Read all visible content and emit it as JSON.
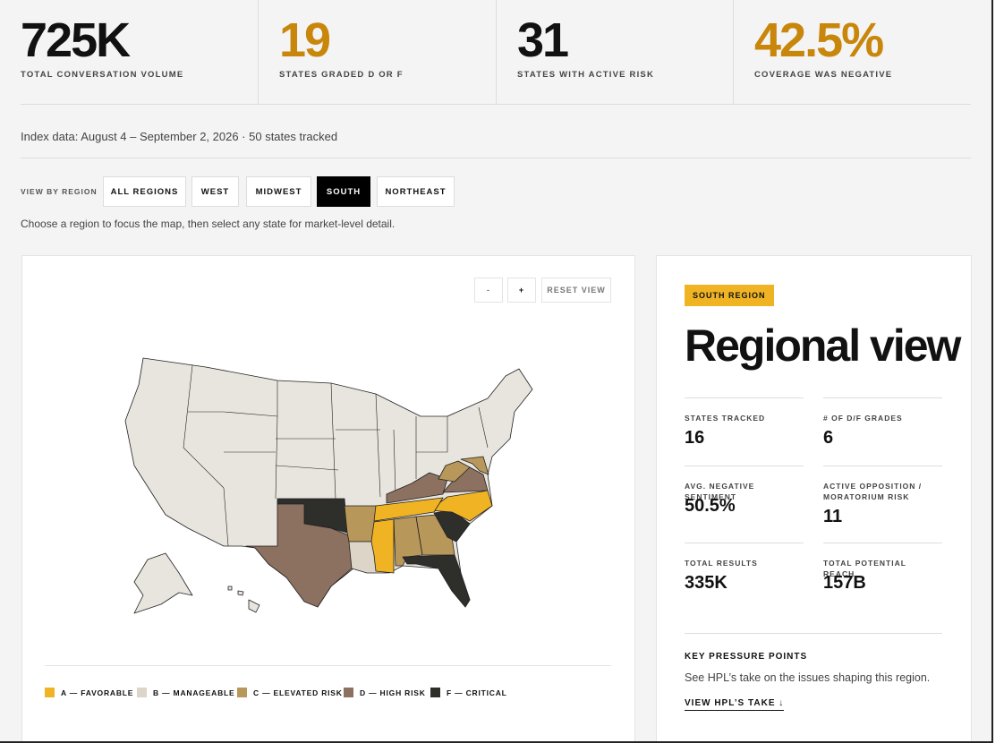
{
  "stats": [
    {
      "value": "725K",
      "label": "TOTAL CONVERSATION VOLUME",
      "color": "#111111"
    },
    {
      "value": "19",
      "label": "STATES GRADED D OR F",
      "color": "#c8860a"
    },
    {
      "value": "31",
      "label": "STATES WITH ACTIVE RISK",
      "color": "#111111"
    },
    {
      "value": "42.5%",
      "label": "COVERAGE WAS NEGATIVE",
      "color": "#c8860a"
    }
  ],
  "index_note": "Index data: August 4 – September 2, 2026 · 50 states tracked",
  "filter": {
    "label": "VIEW BY REGION",
    "buttons": [
      "ALL REGIONS",
      "WEST",
      "MIDWEST",
      "SOUTH",
      "NORTHEAST"
    ],
    "active": 3
  },
  "hint": "Choose a region to focus the map, then select any state for market-level detail.",
  "map_controls": [
    "-",
    "+",
    "RESET VIEW"
  ],
  "legend": [
    {
      "label": "A — FAVORABLE",
      "color": "#f0b323"
    },
    {
      "label": "B — MANAGEABLE",
      "color": "#ddd5c8"
    },
    {
      "label": "C — ELEVATED RISK",
      "color": "#b8975a"
    },
    {
      "label": "D — HIGH RISK",
      "color": "#8c7060"
    },
    {
      "label": "F — CRITICAL",
      "color": "#2e2e2b"
    }
  ],
  "panel": {
    "tag": "SOUTH REGION",
    "title": "Regional view",
    "metrics": [
      {
        "label": "STATES TRACKED",
        "value": "16"
      },
      {
        "label": "# OF D/F GRADES",
        "value": "6"
      },
      {
        "label": "AVG. NEGATIVE SENTIMENT",
        "value": "50.5%"
      },
      {
        "label": "ACTIVE OPPOSITION / MORATORIUM RISK",
        "value": "11"
      },
      {
        "label": "TOTAL RESULTS",
        "value": "335K"
      },
      {
        "label": "TOTAL POTENTIAL REACH",
        "value": "157B"
      }
    ],
    "pressure_title": "KEY PRESSURE POINTS",
    "pressure_text": "See HPL’s take on the issues shaping this region.",
    "link": "VIEW HPL’S TAKE ↓"
  }
}
